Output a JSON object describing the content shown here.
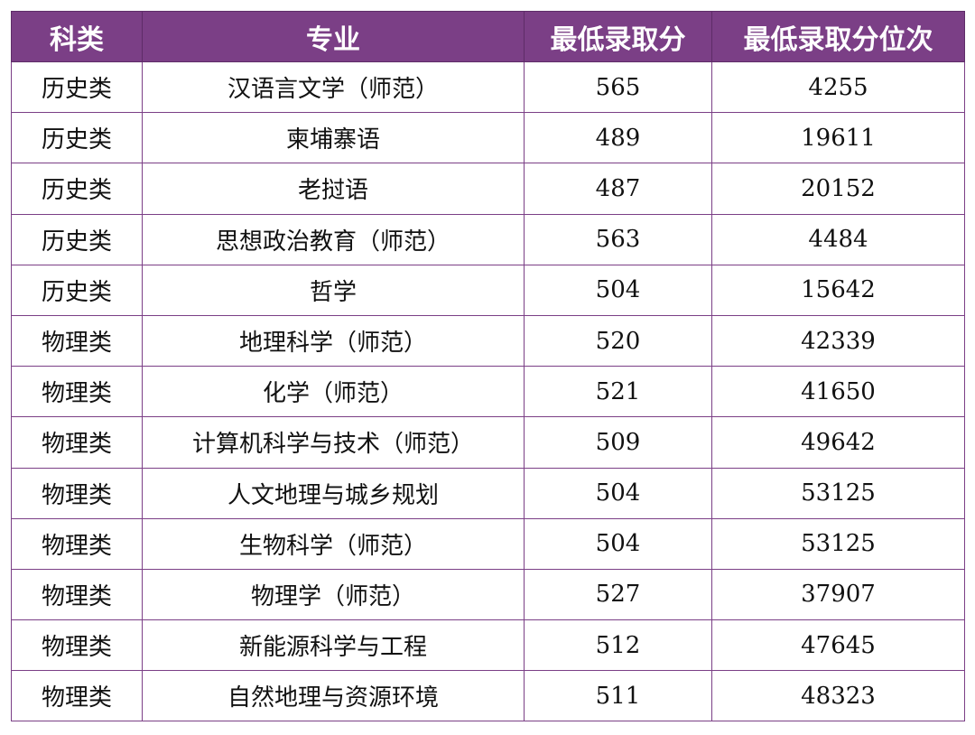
{
  "table": {
    "header": [
      "科类",
      "专业",
      "最低录取分",
      "最低录取分位次"
    ],
    "rows": [
      [
        "历史类",
        "汉语言文学（师范）",
        565,
        4255
      ],
      [
        "历史类",
        "柬埔寨语",
        489,
        19611
      ],
      [
        "历史类",
        "老挝语",
        487,
        20152
      ],
      [
        "历史类",
        "思想政治教育（师范）",
        563,
        4484
      ],
      [
        "历史类",
        "哲学",
        504,
        15642
      ],
      [
        "物理类",
        "地理科学（师范）",
        520,
        42339
      ],
      [
        "物理类",
        "化学（师范）",
        521,
        41650
      ],
      [
        "物理类",
        "计算机科学与技术（师范）",
        509,
        49642
      ],
      [
        "物理类",
        "人文地理与城乡规划",
        504,
        53125
      ],
      [
        "物理类",
        "生物科学（师范）",
        504,
        53125
      ],
      [
        "物理类",
        "物理学（师范）",
        527,
        37907
      ],
      [
        "物理类",
        "新能源科学与工程",
        512,
        47645
      ],
      [
        "物理类",
        "自然地理与资源环境",
        511,
        48323
      ]
    ]
  }
}
